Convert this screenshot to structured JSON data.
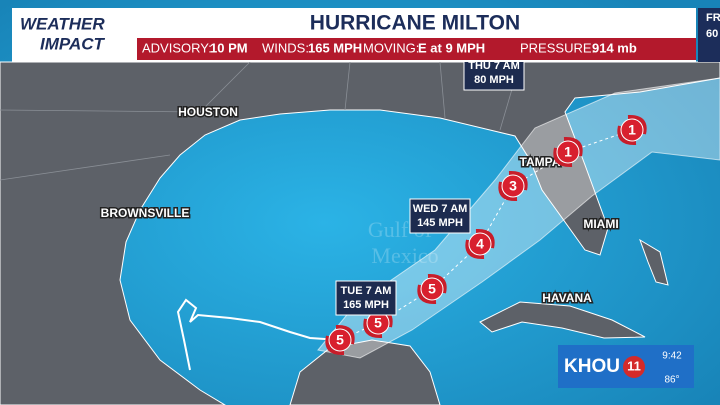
{
  "header": {
    "logo": [
      "WEATHER",
      "IMPACT"
    ],
    "title": "HURRICANE MILTON",
    "stats": [
      {
        "label": "ADVISORY:",
        "value": "10 PM"
      },
      {
        "label": "WINDS:",
        "value": "165 MPH"
      },
      {
        "label": "MOVING:",
        "value": "E at 9 MPH"
      },
      {
        "label": "PRESSURE:",
        "value": "914 mb"
      }
    ]
  },
  "corner": [
    "FR",
    "60"
  ],
  "cities": [
    "HOUSTON",
    "BROWNSVILLE",
    "TAMPA",
    "MIAMI",
    "HAVANA"
  ],
  "watermark": [
    "Gulf of",
    "Mexico"
  ],
  "forecast_labels": [
    {
      "time": "THU 7 AM",
      "wind": "80 MPH"
    },
    {
      "time": "WED 7 AM",
      "wind": "145 MPH"
    },
    {
      "time": "TUE 7 AM",
      "wind": "165 MPH"
    }
  ],
  "storm_categories": [
    5,
    5,
    5,
    4,
    3,
    1,
    1
  ],
  "station": {
    "name": "KHOU",
    "channel": "11",
    "time": "9:42",
    "temp": "86°"
  }
}
